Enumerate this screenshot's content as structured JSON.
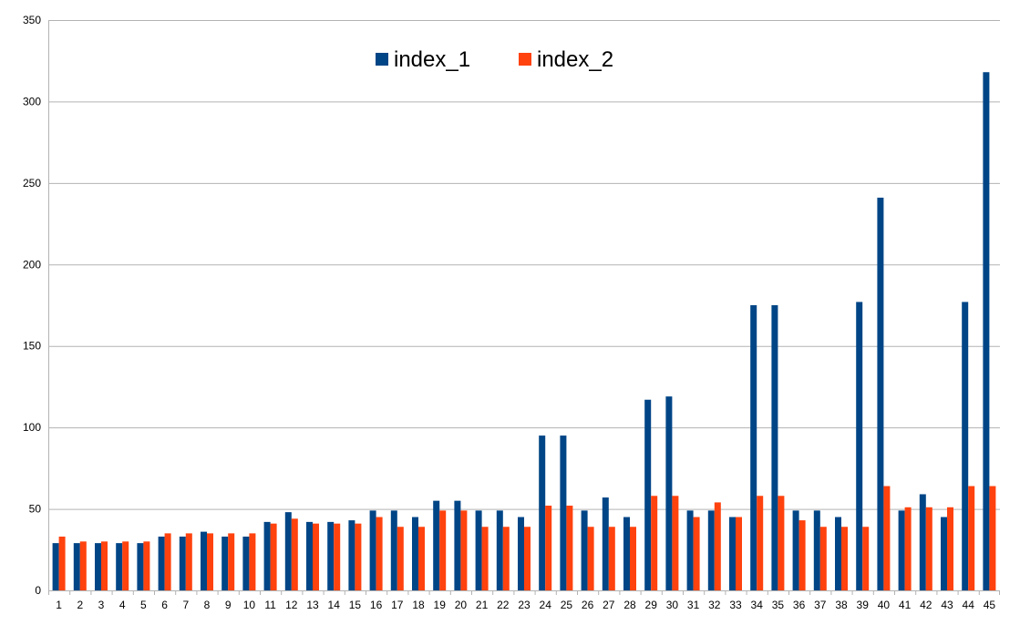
{
  "colors": {
    "index_1": "#004586",
    "index_2": "#ff420e",
    "grid": "#b3b3b3",
    "axis": "#b3b3b3"
  },
  "chart_data": {
    "type": "bar",
    "title": "",
    "xlabel": "",
    "ylabel": "",
    "ylim": [
      0,
      350
    ],
    "yticks": [
      0,
      50,
      100,
      150,
      200,
      250,
      300,
      350
    ],
    "grid": true,
    "legend_position": "top-center",
    "categories": [
      "1",
      "2",
      "3",
      "4",
      "5",
      "6",
      "7",
      "8",
      "9",
      "10",
      "11",
      "12",
      "13",
      "14",
      "15",
      "16",
      "17",
      "18",
      "19",
      "20",
      "21",
      "22",
      "23",
      "24",
      "25",
      "26",
      "27",
      "28",
      "29",
      "30",
      "31",
      "32",
      "33",
      "34",
      "35",
      "36",
      "37",
      "38",
      "39",
      "40",
      "41",
      "42",
      "43",
      "44",
      "45"
    ],
    "series": [
      {
        "name": "index_1",
        "color": "#004586",
        "values": [
          29,
          29,
          29,
          29,
          29,
          33,
          33,
          36,
          33,
          33,
          42,
          48,
          42,
          42,
          43,
          49,
          49,
          45,
          55,
          55,
          49,
          49,
          45,
          95,
          95,
          49,
          57,
          45,
          117,
          119,
          49,
          49,
          45,
          175,
          175,
          49,
          49,
          45,
          177,
          241,
          49,
          59,
          45,
          177,
          318
        ]
      },
      {
        "name": "index_2",
        "color": "#ff420e",
        "values": [
          33,
          30,
          30,
          30,
          30,
          35,
          35,
          35,
          35,
          35,
          41,
          44,
          41,
          41,
          41,
          45,
          39,
          39,
          49,
          49,
          39,
          39,
          39,
          52,
          52,
          39,
          39,
          39,
          58,
          58,
          45,
          54,
          45,
          58,
          58,
          43,
          39,
          39,
          39,
          64,
          51,
          51,
          51,
          64,
          64
        ]
      }
    ]
  }
}
